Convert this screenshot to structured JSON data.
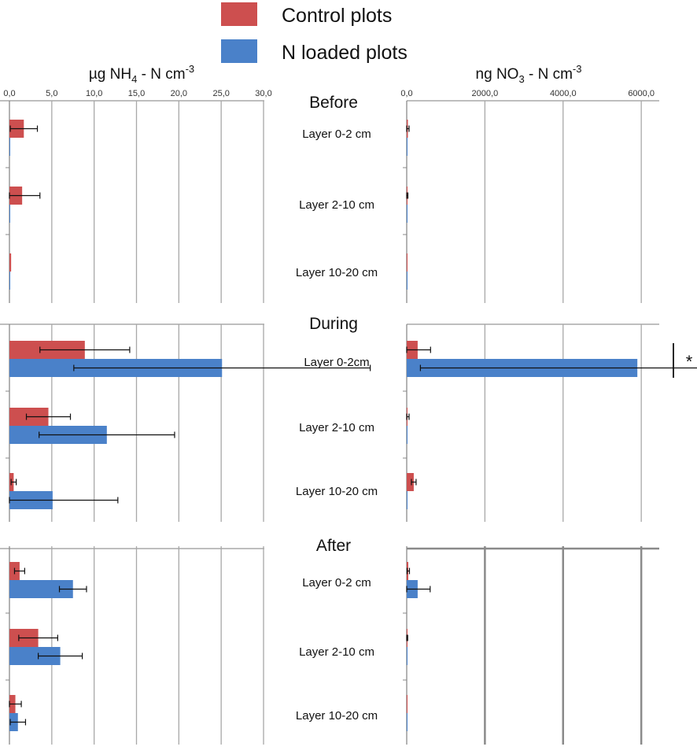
{
  "chart_data": {
    "type": "bar",
    "orientation": "horizontal",
    "legend": {
      "position": "top-center",
      "entries": [
        {
          "label": "Control plots",
          "color": "#cd4f4f"
        },
        {
          "label": "N loaded plots",
          "color": "#4a81c9"
        }
      ]
    },
    "periods": [
      "Before",
      "During",
      "After"
    ],
    "layer_labels": {
      "Before": [
        "Layer 0-2 cm",
        "Layer 2-10 cm",
        "Layer 10-20 cm"
      ],
      "During": [
        "Layer 0-2cm",
        "Layer 2-10 cm",
        "Layer 10-20 cm"
      ],
      "After": [
        "Layer 0-2 cm",
        "Layer 2-10 cm",
        "Layer 10-20 cm"
      ]
    },
    "panels": [
      {
        "id": "nh4",
        "title_main": "µg NH",
        "title_sub": "4",
        "title_rest": " - N cm",
        "title_sup": "-3",
        "xlim": [
          0,
          30
        ],
        "ticks": [
          "0,0",
          "5,0",
          "10,0",
          "15,0",
          "20,0",
          "25,0",
          "30,0"
        ],
        "tick_values": [
          0,
          5,
          10,
          15,
          20,
          25,
          30
        ],
        "series": [
          {
            "name": "Control plots",
            "values": [
              [
                1.7,
                1.5,
                0.2
              ],
              [
                8.9,
                4.6,
                0.5
              ],
              [
                1.2,
                3.4,
                0.7
              ]
            ],
            "errors": [
              [
                1.6,
                2.1,
                0.0
              ],
              [
                5.3,
                2.6,
                0.3
              ],
              [
                0.6,
                2.3,
                0.7
              ]
            ]
          },
          {
            "name": "N loaded plots",
            "values": [
              [
                0.05,
                0.05,
                0.05
              ],
              [
                25.1,
                11.5,
                5.1
              ],
              [
                7.5,
                6.0,
                1.0
              ]
            ],
            "errors": [
              [
                0.0,
                0.0,
                0.0
              ],
              [
                17.5,
                8.0,
                7.7
              ],
              [
                1.6,
                2.6,
                0.9
              ]
            ]
          }
        ]
      },
      {
        "id": "no3",
        "title_main": "ng NO",
        "title_sub": "3",
        "title_rest": " - N cm",
        "title_sup": "-3",
        "xlim": [
          0,
          6500
        ],
        "ticks": [
          "0,0",
          "2000,0",
          "4000,0",
          "6000,0"
        ],
        "tick_values": [
          0,
          2000,
          4000,
          6000
        ],
        "series": [
          {
            "name": "Control plots",
            "values": [
              [
                30,
                10,
                5
              ],
              [
                280,
                20,
                180
              ],
              [
                40,
                5,
                5
              ]
            ],
            "errors": [
              [
                30,
                20,
                0
              ],
              [
                330,
                40,
                60
              ],
              [
                30,
                20,
                0
              ]
            ]
          },
          {
            "name": "N loaded plots",
            "values": [
              [
                10,
                10,
                5
              ],
              [
                5900,
                5,
                5
              ],
              [
                280,
                5,
                5
              ]
            ],
            "errors": [
              [
                0,
                0,
                0
              ],
              [
                5550,
                0,
                0
              ],
              [
                320,
                0,
                0
              ]
            ]
          }
        ]
      }
    ],
    "annotations": [
      {
        "text": "*",
        "panel": "no3",
        "period": "During",
        "layer": 0
      }
    ]
  }
}
